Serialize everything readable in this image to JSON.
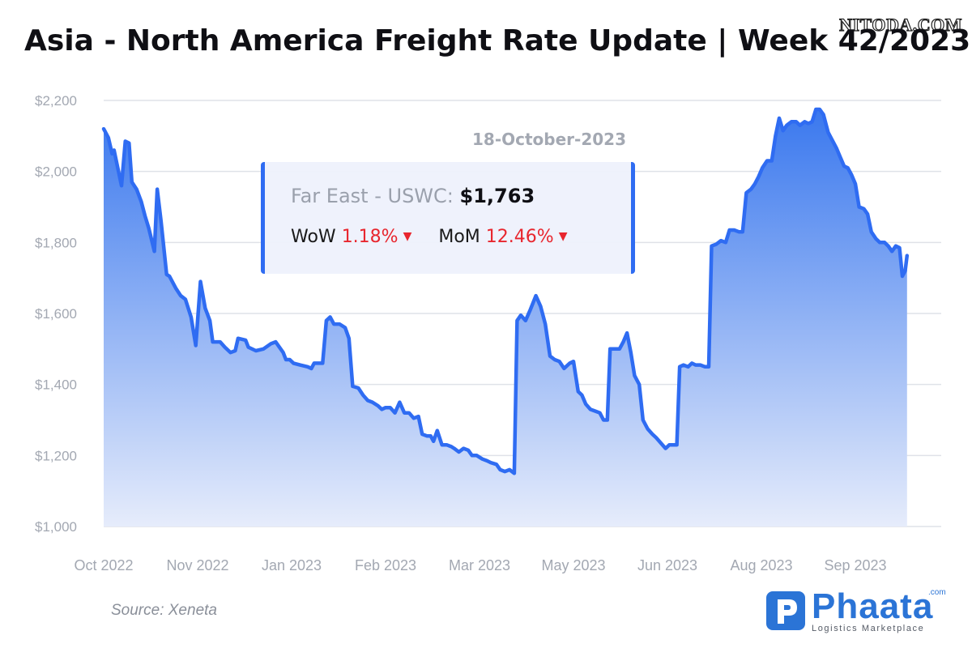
{
  "watermark": "NITODA.COM",
  "title": "Asia - North America Freight Rate Update | Week 42/2023",
  "source": "Source: Xeneta",
  "brand": {
    "name": "Phaata",
    "com": ".com",
    "tagline": "Logistics Marketplace",
    "color": "#2b74d6"
  },
  "tooltip": {
    "date": "18-October-2023",
    "series_label": "Far East - USWC:",
    "value": "$1,763",
    "wow_label": "WoW",
    "wow_value": "1.18%",
    "mom_label": "MoM",
    "mom_value": "12.46%",
    "arrow": "▼"
  },
  "colors": {
    "line": "#2f6cf2",
    "fill_top": "#3a78ee",
    "fill_bottom": "#e6ecfb",
    "down": "#e8262e"
  },
  "chart_data": {
    "type": "area",
    "series_name": "Far East - USWC",
    "y_ticks": [
      "$1,000",
      "$1,200",
      "$1,400",
      "$1,600",
      "$1,800",
      "$2,000",
      "$2,200"
    ],
    "ylim": [
      1000,
      2200
    ],
    "x_ticks": [
      "Oct 2022",
      "Nov 2022",
      "Jan 2023",
      "Feb 2023",
      "Mar 2023",
      "May 2023",
      "Jun 2023",
      "Aug 2023",
      "Sep 2023"
    ],
    "x_tick_positions": [
      0,
      1,
      2,
      3,
      4,
      5,
      6,
      7,
      8
    ],
    "xlim": [
      0,
      8.9
    ],
    "grid": true,
    "values": [
      [
        0.0,
        2120
      ],
      [
        0.05,
        2095
      ],
      [
        0.09,
        2050
      ],
      [
        0.11,
        2060
      ],
      [
        0.15,
        2010
      ],
      [
        0.19,
        1960
      ],
      [
        0.23,
        2085
      ],
      [
        0.27,
        2080
      ],
      [
        0.3,
        1970
      ],
      [
        0.35,
        1950
      ],
      [
        0.4,
        1915
      ],
      [
        0.44,
        1875
      ],
      [
        0.48,
        1840
      ],
      [
        0.54,
        1775
      ],
      [
        0.57,
        1950
      ],
      [
        0.61,
        1860
      ],
      [
        0.67,
        1710
      ],
      [
        0.7,
        1705
      ],
      [
        0.77,
        1670
      ],
      [
        0.82,
        1650
      ],
      [
        0.87,
        1640
      ],
      [
        0.93,
        1590
      ],
      [
        0.98,
        1510
      ],
      [
        1.03,
        1690
      ],
      [
        1.08,
        1615
      ],
      [
        1.13,
        1580
      ],
      [
        1.16,
        1520
      ],
      [
        1.24,
        1520
      ],
      [
        1.29,
        1505
      ],
      [
        1.35,
        1490
      ],
      [
        1.4,
        1495
      ],
      [
        1.43,
        1530
      ],
      [
        1.51,
        1525
      ],
      [
        1.54,
        1505
      ],
      [
        1.62,
        1495
      ],
      [
        1.7,
        1500
      ],
      [
        1.78,
        1515
      ],
      [
        1.83,
        1520
      ],
      [
        1.91,
        1490
      ],
      [
        1.94,
        1470
      ],
      [
        1.98,
        1470
      ],
      [
        2.02,
        1460
      ],
      [
        2.09,
        1455
      ],
      [
        2.17,
        1450
      ],
      [
        2.21,
        1445
      ],
      [
        2.24,
        1460
      ],
      [
        2.29,
        1460
      ],
      [
        2.33,
        1460
      ],
      [
        2.37,
        1580
      ],
      [
        2.41,
        1590
      ],
      [
        2.45,
        1570
      ],
      [
        2.51,
        1570
      ],
      [
        2.57,
        1560
      ],
      [
        2.61,
        1530
      ],
      [
        2.65,
        1395
      ],
      [
        2.71,
        1390
      ],
      [
        2.76,
        1370
      ],
      [
        2.81,
        1355
      ],
      [
        2.86,
        1350
      ],
      [
        2.92,
        1340
      ],
      [
        2.96,
        1330
      ],
      [
        3.0,
        1335
      ],
      [
        3.05,
        1335
      ],
      [
        3.1,
        1320
      ],
      [
        3.15,
        1350
      ],
      [
        3.2,
        1320
      ],
      [
        3.25,
        1320
      ],
      [
        3.3,
        1305
      ],
      [
        3.35,
        1310
      ],
      [
        3.39,
        1260
      ],
      [
        3.44,
        1255
      ],
      [
        3.48,
        1255
      ],
      [
        3.51,
        1240
      ],
      [
        3.55,
        1270
      ],
      [
        3.6,
        1230
      ],
      [
        3.65,
        1230
      ],
      [
        3.7,
        1225
      ],
      [
        3.73,
        1220
      ],
      [
        3.78,
        1210
      ],
      [
        3.83,
        1220
      ],
      [
        3.88,
        1215
      ],
      [
        3.92,
        1200
      ],
      [
        3.97,
        1200
      ],
      [
        4.03,
        1190
      ],
      [
        4.08,
        1185
      ],
      [
        4.12,
        1180
      ],
      [
        4.18,
        1175
      ],
      [
        4.22,
        1160
      ],
      [
        4.27,
        1155
      ],
      [
        4.32,
        1160
      ],
      [
        4.37,
        1150
      ],
      [
        4.4,
        1580
      ],
      [
        4.44,
        1595
      ],
      [
        4.49,
        1580
      ],
      [
        4.54,
        1610
      ],
      [
        4.6,
        1650
      ],
      [
        4.65,
        1620
      ],
      [
        4.7,
        1570
      ],
      [
        4.75,
        1480
      ],
      [
        4.8,
        1470
      ],
      [
        4.85,
        1465
      ],
      [
        4.9,
        1445
      ],
      [
        4.96,
        1460
      ],
      [
        5.0,
        1465
      ],
      [
        5.05,
        1380
      ],
      [
        5.09,
        1370
      ],
      [
        5.13,
        1345
      ],
      [
        5.18,
        1330
      ],
      [
        5.23,
        1325
      ],
      [
        5.28,
        1320
      ],
      [
        5.32,
        1300
      ],
      [
        5.36,
        1300
      ],
      [
        5.39,
        1500
      ],
      [
        5.44,
        1500
      ],
      [
        5.49,
        1500
      ],
      [
        5.53,
        1520
      ],
      [
        5.57,
        1545
      ],
      [
        5.61,
        1490
      ],
      [
        5.65,
        1425
      ],
      [
        5.7,
        1400
      ],
      [
        5.74,
        1300
      ],
      [
        5.79,
        1275
      ],
      [
        5.84,
        1260
      ],
      [
        5.88,
        1250
      ],
      [
        5.93,
        1235
      ],
      [
        5.98,
        1220
      ],
      [
        6.02,
        1230
      ],
      [
        6.06,
        1230
      ],
      [
        6.1,
        1230
      ],
      [
        6.13,
        1450
      ],
      [
        6.17,
        1455
      ],
      [
        6.22,
        1450
      ],
      [
        6.26,
        1460
      ],
      [
        6.3,
        1455
      ],
      [
        6.35,
        1455
      ],
      [
        6.4,
        1450
      ],
      [
        6.44,
        1450
      ],
      [
        6.47,
        1790
      ],
      [
        6.52,
        1795
      ],
      [
        6.57,
        1805
      ],
      [
        6.62,
        1800
      ],
      [
        6.66,
        1835
      ],
      [
        6.71,
        1835
      ],
      [
        6.76,
        1830
      ],
      [
        6.8,
        1830
      ],
      [
        6.84,
        1940
      ],
      [
        6.89,
        1950
      ],
      [
        6.93,
        1965
      ],
      [
        6.97,
        1985
      ],
      [
        7.01,
        2010
      ],
      [
        7.06,
        2030
      ],
      [
        7.11,
        2030
      ],
      [
        7.15,
        2100
      ],
      [
        7.19,
        2150
      ],
      [
        7.23,
        2115
      ],
      [
        7.27,
        2130
      ],
      [
        7.32,
        2140
      ],
      [
        7.37,
        2140
      ],
      [
        7.41,
        2130
      ],
      [
        7.46,
        2140
      ],
      [
        7.5,
        2135
      ],
      [
        7.54,
        2140
      ],
      [
        7.58,
        2175
      ],
      [
        7.62,
        2175
      ],
      [
        7.66,
        2160
      ],
      [
        7.71,
        2110
      ],
      [
        7.75,
        2090
      ],
      [
        7.8,
        2065
      ],
      [
        7.84,
        2040
      ],
      [
        7.88,
        2015
      ],
      [
        7.92,
        2010
      ],
      [
        7.96,
        1990
      ],
      [
        8.0,
        1965
      ],
      [
        8.04,
        1900
      ],
      [
        8.09,
        1895
      ],
      [
        8.13,
        1880
      ],
      [
        8.17,
        1830
      ],
      [
        8.22,
        1810
      ],
      [
        8.26,
        1800
      ],
      [
        8.31,
        1800
      ],
      [
        8.35,
        1790
      ],
      [
        8.39,
        1775
      ],
      [
        8.43,
        1790
      ],
      [
        8.47,
        1785
      ],
      [
        8.5,
        1705
      ],
      [
        8.53,
        1720
      ],
      [
        8.55,
        1763
      ]
    ]
  }
}
